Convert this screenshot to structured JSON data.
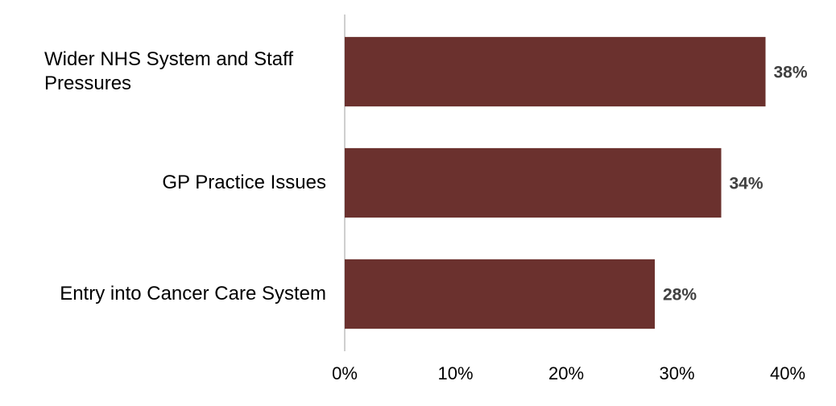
{
  "chart_data": {
    "type": "bar",
    "orientation": "horizontal",
    "categories": [
      "Wider NHS System and Staff Pressures",
      "GP Practice Issues",
      "Entry into Cancer Care System"
    ],
    "values": [
      38,
      34,
      28
    ],
    "value_labels": [
      "38%",
      "34%",
      "28%"
    ],
    "color": "#6b312e",
    "xlim": [
      0,
      40
    ],
    "xticks": [
      {
        "value": 0,
        "label": "0%"
      },
      {
        "value": 10,
        "label": "10%"
      },
      {
        "value": 20,
        "label": "20%"
      },
      {
        "value": 30,
        "label": "30%"
      },
      {
        "value": 40,
        "label": "40%"
      }
    ],
    "grid": false
  }
}
